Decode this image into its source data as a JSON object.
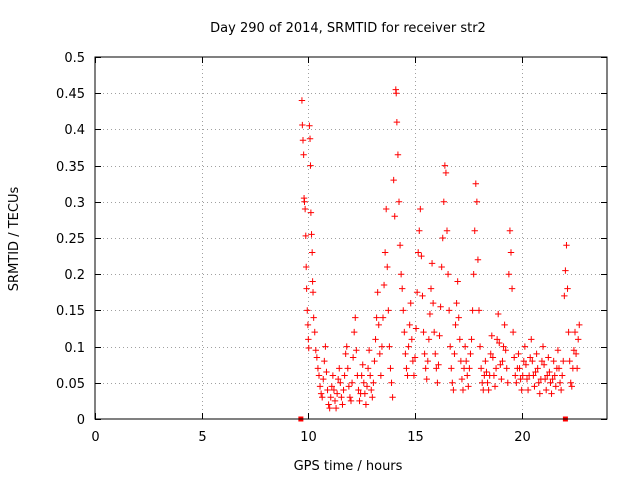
{
  "chart_data": {
    "type": "scatter",
    "title": "Day 290 of 2014, SRMTID for receiver str2",
    "xlabel": "GPS time / hours",
    "ylabel": "SRMTID / TECUs",
    "xlim": [
      0,
      24
    ],
    "ylim": [
      0,
      0.5
    ],
    "xticks": [
      0,
      5,
      10,
      15,
      20
    ],
    "yticks": [
      0,
      0.05,
      0.1,
      0.15,
      0.2,
      0.25,
      0.3,
      0.35,
      0.4,
      0.45,
      0.5
    ],
    "grid": true,
    "marker": "plus",
    "color": "#ff0000",
    "zero_markers": {
      "x": [
        9.65,
        22.05
      ],
      "y": [
        0,
        0
      ]
    },
    "series": [
      {
        "name": "SRMTID",
        "points": [
          [
            9.7,
            0.44
          ],
          [
            9.72,
            0.406
          ],
          [
            9.75,
            0.385
          ],
          [
            9.78,
            0.365
          ],
          [
            9.8,
            0.305
          ],
          [
            9.82,
            0.3
          ],
          [
            9.85,
            0.29
          ],
          [
            9.88,
            0.253
          ],
          [
            9.9,
            0.21
          ],
          [
            9.92,
            0.18
          ],
          [
            9.95,
            0.15
          ],
          [
            9.98,
            0.13
          ],
          [
            10.0,
            0.11
          ],
          [
            10.02,
            0.098
          ],
          [
            10.05,
            0.405
          ],
          [
            10.08,
            0.387
          ],
          [
            10.1,
            0.35
          ],
          [
            10.12,
            0.285
          ],
          [
            10.15,
            0.255
          ],
          [
            10.18,
            0.23
          ],
          [
            10.2,
            0.19
          ],
          [
            10.22,
            0.175
          ],
          [
            10.25,
            0.14
          ],
          [
            10.3,
            0.12
          ],
          [
            10.35,
            0.095
          ],
          [
            10.4,
            0.085
          ],
          [
            10.45,
            0.07
          ],
          [
            10.5,
            0.06
          ],
          [
            10.55,
            0.045
          ],
          [
            10.6,
            0.035
          ],
          [
            10.65,
            0.03
          ],
          [
            10.7,
            0.055
          ],
          [
            10.75,
            0.08
          ],
          [
            10.8,
            0.1
          ],
          [
            10.85,
            0.065
          ],
          [
            10.9,
            0.04
          ],
          [
            10.95,
            0.02
          ],
          [
            11.0,
            0.015
          ],
          [
            11.05,
            0.03
          ],
          [
            11.1,
            0.045
          ],
          [
            11.15,
            0.06
          ],
          [
            11.2,
            0.04
          ],
          [
            11.25,
            0.025
          ],
          [
            11.3,
            0.015
          ],
          [
            11.35,
            0.035
          ],
          [
            11.4,
            0.055
          ],
          [
            11.45,
            0.07
          ],
          [
            11.5,
            0.05
          ],
          [
            11.55,
            0.03
          ],
          [
            11.6,
            0.02
          ],
          [
            11.65,
            0.04
          ],
          [
            11.7,
            0.06
          ],
          [
            11.75,
            0.09
          ],
          [
            11.8,
            0.1
          ],
          [
            11.85,
            0.07
          ],
          [
            11.9,
            0.045
          ],
          [
            11.95,
            0.03
          ],
          [
            12.0,
            0.025
          ],
          [
            12.05,
            0.05
          ],
          [
            12.1,
            0.085
          ],
          [
            12.15,
            0.12
          ],
          [
            12.2,
            0.14
          ],
          [
            12.25,
            0.095
          ],
          [
            12.3,
            0.06
          ],
          [
            12.35,
            0.04
          ],
          [
            12.4,
            0.025
          ],
          [
            12.45,
            0.035
          ],
          [
            12.5,
            0.06
          ],
          [
            12.55,
            0.075
          ],
          [
            12.6,
            0.05
          ],
          [
            12.65,
            0.035
          ],
          [
            12.7,
            0.02
          ],
          [
            12.75,
            0.045
          ],
          [
            12.8,
            0.07
          ],
          [
            12.85,
            0.095
          ],
          [
            12.9,
            0.06
          ],
          [
            12.95,
            0.04
          ],
          [
            13.0,
            0.03
          ],
          [
            13.05,
            0.05
          ],
          [
            13.1,
            0.08
          ],
          [
            13.15,
            0.11
          ],
          [
            13.2,
            0.14
          ],
          [
            13.25,
            0.175
          ],
          [
            13.3,
            0.13
          ],
          [
            13.35,
            0.09
          ],
          [
            13.4,
            0.06
          ],
          [
            13.45,
            0.1
          ],
          [
            13.5,
            0.14
          ],
          [
            13.55,
            0.185
          ],
          [
            13.6,
            0.23
          ],
          [
            13.65,
            0.29
          ],
          [
            13.7,
            0.21
          ],
          [
            13.75,
            0.15
          ],
          [
            13.8,
            0.1
          ],
          [
            13.85,
            0.07
          ],
          [
            13.9,
            0.05
          ],
          [
            13.95,
            0.03
          ],
          [
            14.0,
            0.33
          ],
          [
            14.05,
            0.28
          ],
          [
            14.1,
            0.455
          ],
          [
            14.12,
            0.45
          ],
          [
            14.15,
            0.41
          ],
          [
            14.2,
            0.365
          ],
          [
            14.25,
            0.3
          ],
          [
            14.3,
            0.24
          ],
          [
            14.35,
            0.2
          ],
          [
            14.4,
            0.18
          ],
          [
            14.45,
            0.15
          ],
          [
            14.5,
            0.12
          ],
          [
            14.55,
            0.09
          ],
          [
            14.6,
            0.07
          ],
          [
            14.65,
            0.06
          ],
          [
            14.7,
            0.1
          ],
          [
            14.75,
            0.13
          ],
          [
            14.8,
            0.16
          ],
          [
            14.85,
            0.11
          ],
          [
            14.9,
            0.08
          ],
          [
            14.95,
            0.06
          ],
          [
            15.0,
            0.085
          ],
          [
            15.05,
            0.125
          ],
          [
            15.1,
            0.175
          ],
          [
            15.15,
            0.23
          ],
          [
            15.2,
            0.26
          ],
          [
            15.25,
            0.29
          ],
          [
            15.3,
            0.225
          ],
          [
            15.35,
            0.17
          ],
          [
            15.4,
            0.12
          ],
          [
            15.45,
            0.09
          ],
          [
            15.5,
            0.07
          ],
          [
            15.55,
            0.055
          ],
          [
            15.6,
            0.08
          ],
          [
            15.65,
            0.11
          ],
          [
            15.7,
            0.145
          ],
          [
            15.75,
            0.18
          ],
          [
            15.8,
            0.215
          ],
          [
            15.85,
            0.16
          ],
          [
            15.9,
            0.12
          ],
          [
            15.95,
            0.09
          ],
          [
            16.0,
            0.07
          ],
          [
            16.05,
            0.05
          ],
          [
            16.1,
            0.075
          ],
          [
            16.15,
            0.115
          ],
          [
            16.2,
            0.155
          ],
          [
            16.25,
            0.21
          ],
          [
            16.3,
            0.25
          ],
          [
            16.35,
            0.3
          ],
          [
            16.4,
            0.35
          ],
          [
            16.45,
            0.34
          ],
          [
            16.5,
            0.26
          ],
          [
            16.55,
            0.2
          ],
          [
            16.6,
            0.15
          ],
          [
            16.65,
            0.1
          ],
          [
            16.7,
            0.07
          ],
          [
            16.75,
            0.05
          ],
          [
            16.8,
            0.04
          ],
          [
            16.85,
            0.09
          ],
          [
            16.9,
            0.13
          ],
          [
            16.95,
            0.16
          ],
          [
            17.0,
            0.19
          ],
          [
            17.05,
            0.14
          ],
          [
            17.1,
            0.11
          ],
          [
            17.15,
            0.08
          ],
          [
            17.2,
            0.055
          ],
          [
            17.25,
            0.04
          ],
          [
            17.3,
            0.07
          ],
          [
            17.35,
            0.1
          ],
          [
            17.4,
            0.08
          ],
          [
            17.45,
            0.06
          ],
          [
            17.5,
            0.045
          ],
          [
            17.55,
            0.07
          ],
          [
            17.6,
            0.09
          ],
          [
            17.65,
            0.11
          ],
          [
            17.7,
            0.15
          ],
          [
            17.75,
            0.2
          ],
          [
            17.8,
            0.26
          ],
          [
            17.85,
            0.325
          ],
          [
            17.9,
            0.3
          ],
          [
            17.95,
            0.22
          ],
          [
            18.0,
            0.15
          ],
          [
            18.05,
            0.1
          ],
          [
            18.1,
            0.07
          ],
          [
            18.15,
            0.05
          ],
          [
            18.2,
            0.04
          ],
          [
            18.25,
            0.06
          ],
          [
            18.3,
            0.08
          ],
          [
            18.35,
            0.065
          ],
          [
            18.4,
            0.05
          ],
          [
            18.45,
            0.04
          ],
          [
            18.5,
            0.06
          ],
          [
            18.55,
            0.09
          ],
          [
            18.6,
            0.115
          ],
          [
            18.65,
            0.085
          ],
          [
            18.7,
            0.06
          ],
          [
            18.75,
            0.045
          ],
          [
            18.8,
            0.07
          ],
          [
            18.85,
            0.11
          ],
          [
            18.9,
            0.145
          ],
          [
            18.95,
            0.105
          ],
          [
            19.0,
            0.075
          ],
          [
            19.05,
            0.055
          ],
          [
            19.1,
            0.08
          ],
          [
            19.15,
            0.1
          ],
          [
            19.2,
            0.13
          ],
          [
            19.25,
            0.095
          ],
          [
            19.3,
            0.07
          ],
          [
            19.35,
            0.05
          ],
          [
            19.4,
            0.2
          ],
          [
            19.45,
            0.26
          ],
          [
            19.5,
            0.23
          ],
          [
            19.55,
            0.18
          ],
          [
            19.6,
            0.12
          ],
          [
            19.65,
            0.085
          ],
          [
            19.7,
            0.06
          ],
          [
            19.75,
            0.05
          ],
          [
            19.8,
            0.07
          ],
          [
            19.85,
            0.09
          ],
          [
            19.9,
            0.07
          ],
          [
            19.95,
            0.055
          ],
          [
            20.0,
            0.04
          ],
          [
            20.05,
            0.06
          ],
          [
            20.1,
            0.08
          ],
          [
            20.15,
            0.1
          ],
          [
            20.2,
            0.075
          ],
          [
            20.25,
            0.055
          ],
          [
            20.3,
            0.04
          ],
          [
            20.35,
            0.06
          ],
          [
            20.4,
            0.085
          ],
          [
            20.45,
            0.11
          ],
          [
            20.5,
            0.08
          ],
          [
            20.55,
            0.06
          ],
          [
            20.6,
            0.045
          ],
          [
            20.65,
            0.065
          ],
          [
            20.7,
            0.09
          ],
          [
            20.75,
            0.07
          ],
          [
            20.8,
            0.05
          ],
          [
            20.85,
            0.035
          ],
          [
            20.9,
            0.055
          ],
          [
            20.95,
            0.08
          ],
          [
            21.0,
            0.1
          ],
          [
            21.05,
            0.075
          ],
          [
            21.1,
            0.055
          ],
          [
            21.15,
            0.04
          ],
          [
            21.2,
            0.06
          ],
          [
            21.25,
            0.085
          ],
          [
            21.3,
            0.065
          ],
          [
            21.35,
            0.05
          ],
          [
            21.4,
            0.035
          ],
          [
            21.45,
            0.055
          ],
          [
            21.5,
            0.08
          ],
          [
            21.55,
            0.06
          ],
          [
            21.6,
            0.045
          ],
          [
            21.65,
            0.07
          ],
          [
            21.7,
            0.095
          ],
          [
            21.75,
            0.07
          ],
          [
            21.8,
            0.05
          ],
          [
            21.85,
            0.04
          ],
          [
            21.9,
            0.06
          ],
          [
            21.95,
            0.08
          ],
          [
            22.0,
            0.17
          ],
          [
            22.05,
            0.205
          ],
          [
            22.1,
            0.24
          ],
          [
            22.15,
            0.18
          ],
          [
            22.2,
            0.12
          ],
          [
            22.25,
            0.08
          ],
          [
            22.3,
            0.05
          ],
          [
            22.35,
            0.045
          ],
          [
            22.4,
            0.07
          ],
          [
            22.45,
            0.095
          ],
          [
            22.5,
            0.12
          ],
          [
            22.55,
            0.09
          ],
          [
            22.6,
            0.07
          ],
          [
            22.65,
            0.11
          ],
          [
            22.7,
            0.13
          ]
        ]
      }
    ]
  }
}
